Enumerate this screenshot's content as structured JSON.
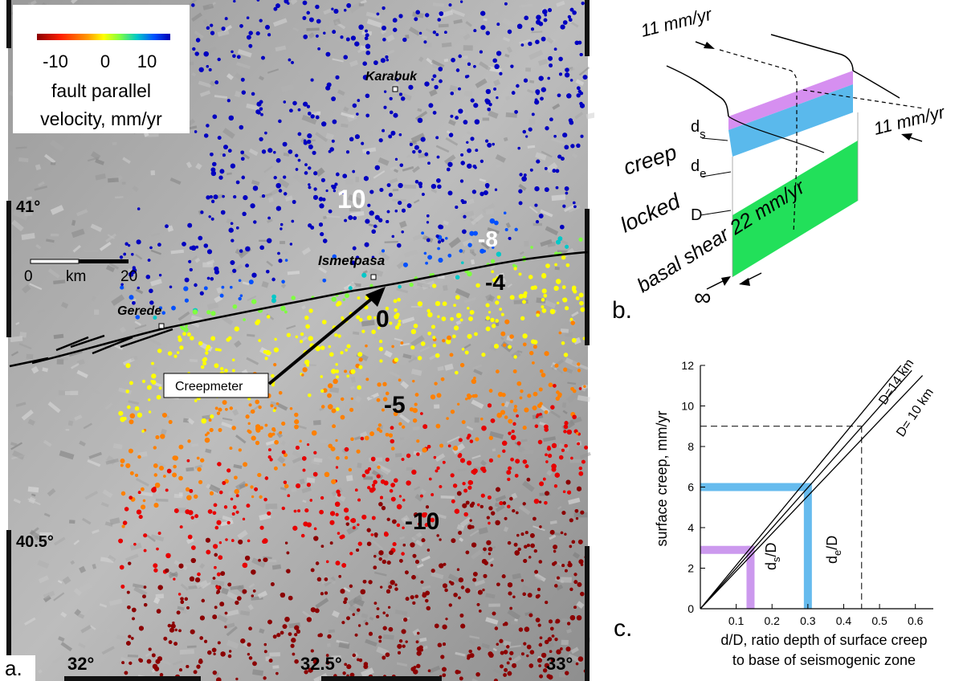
{
  "panel_a": {
    "label": "a.",
    "colorbar": {
      "ticks": [
        "-10",
        "0",
        "10"
      ],
      "title_line1": "fault parallel",
      "title_line2": "velocity, mm/yr",
      "colors": [
        "#8b0000",
        "#e60000",
        "#ff8000",
        "#ffff00",
        "#7fff40",
        "#00c8c8",
        "#0050ff",
        "#0000c0"
      ]
    },
    "latitude_labels": [
      "41°",
      "40.5°"
    ],
    "longitude_labels": [
      "32°",
      "32.5°",
      "33°"
    ],
    "scale_bar": {
      "start": "0",
      "unit": "km",
      "end": "20"
    },
    "places": {
      "karabuk": "Karabuk",
      "ismetpasa": "Ismetpasa",
      "gerede": "Gerede"
    },
    "creepmeter_label": "Creepmeter",
    "contour_labels": [
      "10",
      "-8",
      "-4",
      "0",
      "-5",
      "-10"
    ]
  },
  "panel_b": {
    "label": "b.",
    "rate_top": "11 mm/yr",
    "rate_right": "11 mm/yr",
    "ds": "d",
    "ds_sub": "s",
    "de": "d",
    "de_sub": "e",
    "D": "D",
    "creep": "creep",
    "locked": "locked",
    "basal": "basal shear 22 mm/yr",
    "infinity": "∞",
    "colors": {
      "purple": "#d68ff0",
      "blue": "#5ab9ec",
      "green": "#22e05a"
    }
  },
  "panel_c": {
    "label": "c.",
    "xlabel_line1": "d/D, ratio depth of surface creep",
    "xlabel_line2": "to base of seismogenic zone",
    "ds_label": "d",
    "ds_sub": "s",
    "ds_den": "/D",
    "de_label": "d",
    "de_sub": "e",
    "de_den": "/D",
    "chart_data": {
      "type": "line",
      "ylabel": "surface creep, mm/yr",
      "xlim": [
        0,
        0.65
      ],
      "ylim": [
        0,
        12
      ],
      "xticks": [
        0.1,
        0.2,
        0.3,
        0.4,
        0.5,
        0.6
      ],
      "yticks": [
        0,
        2,
        4,
        6,
        8,
        10,
        12
      ],
      "series": [
        {
          "name": "D=14 km",
          "x": [
            0,
            0.56
          ],
          "y": [
            0,
            12
          ]
        },
        {
          "name": "",
          "x": [
            0,
            0.59
          ],
          "y": [
            0,
            11.75
          ]
        },
        {
          "name": "D= 10 km",
          "x": [
            0,
            0.62
          ],
          "y": [
            0,
            11.5
          ]
        }
      ],
      "reference_lines": [
        {
          "color": "#cc99ee",
          "x": 0.14,
          "y": 2.9
        },
        {
          "color": "#66bbee",
          "x": 0.3,
          "y": 6.0
        },
        {
          "color": "#000000",
          "style": "dashed",
          "x": 0.45,
          "y": 9.0
        }
      ]
    }
  }
}
